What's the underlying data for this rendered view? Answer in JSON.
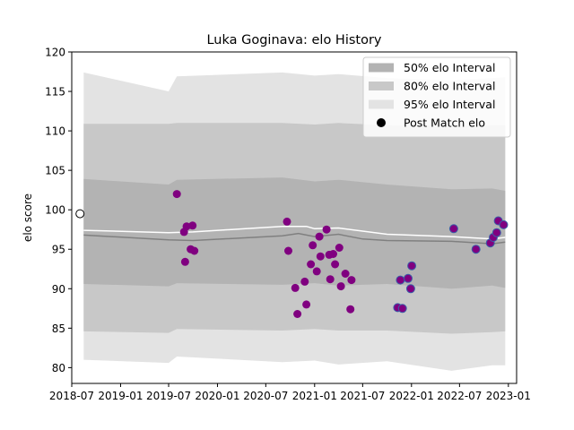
{
  "chart_data": {
    "type": "scatter",
    "title": "Luka Goginava: elo History",
    "xlabel": "",
    "ylabel": "elo score",
    "xlim": [
      "2018-07-01",
      "2023-02-01"
    ],
    "ylim": [
      78,
      120
    ],
    "grid": false,
    "legend_position": "top-right",
    "x_ticks": [
      {
        "date": "2018-07-01",
        "label": "2018-07"
      },
      {
        "date": "2019-01-01",
        "label": "2019-01"
      },
      {
        "date": "2019-07-01",
        "label": "2019-07"
      },
      {
        "date": "2020-01-01",
        "label": "2020-01"
      },
      {
        "date": "2020-07-01",
        "label": "2020-07"
      },
      {
        "date": "2021-01-01",
        "label": "2021-01"
      },
      {
        "date": "2021-07-01",
        "label": "2021-07"
      },
      {
        "date": "2022-01-01",
        "label": "2022-01"
      },
      {
        "date": "2022-07-01",
        "label": "2022-07"
      },
      {
        "date": "2023-01-01",
        "label": "2023-01"
      }
    ],
    "y_ticks": [
      80,
      85,
      90,
      95,
      100,
      105,
      110,
      115,
      120
    ],
    "legend": [
      {
        "label": "50% elo Interval",
        "color": "#b3b3b3"
      },
      {
        "label": "80% elo Interval",
        "color": "#c8c8c8"
      },
      {
        "label": "95% elo Interval",
        "color": "#e3e3e3"
      },
      {
        "label": "Post Match elo",
        "color": "#000000"
      }
    ],
    "bands": [
      {
        "name": "95% elo Interval",
        "color": "#e3e3e3",
        "points": [
          {
            "date": "2018-08-15",
            "lower": 81.0,
            "upper": 117.4
          },
          {
            "date": "2019-07-01",
            "lower": 80.6,
            "upper": 115.0
          },
          {
            "date": "2019-08-01",
            "lower": 81.4,
            "upper": 116.9
          },
          {
            "date": "2020-09-01",
            "lower": 80.7,
            "upper": 117.4
          },
          {
            "date": "2021-01-01",
            "lower": 80.9,
            "upper": 117.0
          },
          {
            "date": "2021-04-01",
            "lower": 80.4,
            "upper": 117.2
          },
          {
            "date": "2021-10-01",
            "lower": 80.8,
            "upper": 116.7
          },
          {
            "date": "2022-06-01",
            "lower": 79.6,
            "upper": 116.4
          },
          {
            "date": "2022-11-01",
            "lower": 80.3,
            "upper": 116.7
          },
          {
            "date": "2022-12-20",
            "lower": 80.3,
            "upper": 116.8
          }
        ]
      },
      {
        "name": "80% elo Interval",
        "color": "#c8c8c8",
        "points": [
          {
            "date": "2018-08-15",
            "lower": 84.6,
            "upper": 110.9
          },
          {
            "date": "2019-07-01",
            "lower": 84.4,
            "upper": 110.9
          },
          {
            "date": "2019-08-01",
            "lower": 84.9,
            "upper": 111.0
          },
          {
            "date": "2020-09-01",
            "lower": 84.7,
            "upper": 111.0
          },
          {
            "date": "2021-01-01",
            "lower": 84.9,
            "upper": 110.8
          },
          {
            "date": "2021-04-01",
            "lower": 84.7,
            "upper": 111.0
          },
          {
            "date": "2021-10-01",
            "lower": 84.7,
            "upper": 110.7
          },
          {
            "date": "2022-06-01",
            "lower": 84.3,
            "upper": 110.6
          },
          {
            "date": "2022-11-01",
            "lower": 84.5,
            "upper": 110.7
          },
          {
            "date": "2022-12-20",
            "lower": 84.6,
            "upper": 110.7
          }
        ]
      },
      {
        "name": "50% elo Interval",
        "color": "#b3b3b3",
        "points": [
          {
            "date": "2018-08-15",
            "lower": 90.6,
            "upper": 103.9
          },
          {
            "date": "2019-07-01",
            "lower": 90.3,
            "upper": 103.2
          },
          {
            "date": "2019-08-01",
            "lower": 90.7,
            "upper": 103.8
          },
          {
            "date": "2020-09-01",
            "lower": 90.5,
            "upper": 104.1
          },
          {
            "date": "2021-01-01",
            "lower": 90.7,
            "upper": 103.6
          },
          {
            "date": "2021-04-01",
            "lower": 90.4,
            "upper": 103.8
          },
          {
            "date": "2021-10-01",
            "lower": 90.6,
            "upper": 103.2
          },
          {
            "date": "2022-06-01",
            "lower": 90.0,
            "upper": 102.6
          },
          {
            "date": "2022-11-01",
            "lower": 90.4,
            "upper": 102.7
          },
          {
            "date": "2022-12-20",
            "lower": 90.1,
            "upper": 102.4
          }
        ]
      }
    ],
    "median_line": {
      "color": "#808080",
      "points": [
        {
          "date": "2018-08-15",
          "value": 96.8
        },
        {
          "date": "2019-07-01",
          "value": 96.2
        },
        {
          "date": "2019-10-01",
          "value": 96.1
        },
        {
          "date": "2020-09-01",
          "value": 96.7
        },
        {
          "date": "2020-11-01",
          "value": 97.0
        },
        {
          "date": "2021-01-01",
          "value": 96.6
        },
        {
          "date": "2021-04-01",
          "value": 96.9
        },
        {
          "date": "2021-07-01",
          "value": 96.3
        },
        {
          "date": "2021-10-01",
          "value": 96.1
        },
        {
          "date": "2022-06-01",
          "value": 96.0
        },
        {
          "date": "2022-11-01",
          "value": 95.7
        },
        {
          "date": "2022-12-20",
          "value": 95.9
        }
      ]
    },
    "expected_line": {
      "color": "#ffffff",
      "points": [
        {
          "date": "2018-08-15",
          "value": 97.4
        },
        {
          "date": "2019-07-01",
          "value": 97.1
        },
        {
          "date": "2019-10-01",
          "value": 97.2
        },
        {
          "date": "2020-09-01",
          "value": 97.9
        },
        {
          "date": "2020-12-01",
          "value": 97.9
        },
        {
          "date": "2021-01-01",
          "value": 97.6
        },
        {
          "date": "2021-04-01",
          "value": 97.7
        },
        {
          "date": "2021-10-01",
          "value": 96.9
        },
        {
          "date": "2022-06-01",
          "value": 96.6
        },
        {
          "date": "2022-11-01",
          "value": 96.3
        },
        {
          "date": "2022-12-20",
          "value": 96.5
        }
      ]
    },
    "initial_point": {
      "date": "2018-08-01",
      "value": 99.5
    },
    "series": [
      {
        "color": "#800080",
        "points": [
          {
            "date": "2019-08-01",
            "value": 102.0
          },
          {
            "date": "2019-08-28",
            "value": 97.2
          },
          {
            "date": "2019-09-01",
            "value": 93.4
          },
          {
            "date": "2019-09-07",
            "value": 97.9
          },
          {
            "date": "2019-09-22",
            "value": 95.0
          },
          {
            "date": "2019-09-29",
            "value": 98.0
          },
          {
            "date": "2019-10-06",
            "value": 94.8
          },
          {
            "date": "2020-09-19",
            "value": 98.5
          },
          {
            "date": "2020-09-24",
            "value": 94.8
          },
          {
            "date": "2020-10-20",
            "value": 90.1
          },
          {
            "date": "2020-10-28",
            "value": 86.8
          },
          {
            "date": "2020-11-25",
            "value": 90.9
          },
          {
            "date": "2020-12-01",
            "value": 88.0
          },
          {
            "date": "2020-12-18",
            "value": 93.1
          },
          {
            "date": "2020-12-25",
            "value": 95.5
          },
          {
            "date": "2021-01-09",
            "value": 92.2
          },
          {
            "date": "2021-01-19",
            "value": 96.6
          },
          {
            "date": "2021-01-23",
            "value": 94.1
          },
          {
            "date": "2021-02-15",
            "value": 97.5
          },
          {
            "date": "2021-02-25",
            "value": 94.3
          },
          {
            "date": "2021-03-01",
            "value": 91.2
          },
          {
            "date": "2021-03-12",
            "value": 94.4
          },
          {
            "date": "2021-03-19",
            "value": 93.1
          },
          {
            "date": "2021-04-04",
            "value": 95.2
          },
          {
            "date": "2021-04-10",
            "value": 90.3
          },
          {
            "date": "2021-04-27",
            "value": 91.9
          },
          {
            "date": "2021-05-16",
            "value": 87.4
          },
          {
            "date": "2021-05-20",
            "value": 91.1
          }
        ]
      },
      {
        "color": "#800080",
        "edge_color": "#3b5fa8",
        "points": [
          {
            "date": "2021-11-10",
            "value": 87.6
          },
          {
            "date": "2021-11-20",
            "value": 91.1
          },
          {
            "date": "2021-11-28",
            "value": 87.5
          },
          {
            "date": "2021-12-19",
            "value": 91.3
          },
          {
            "date": "2021-12-29",
            "value": 90.0
          },
          {
            "date": "2022-01-02",
            "value": 92.9
          },
          {
            "date": "2022-06-09",
            "value": 97.6
          },
          {
            "date": "2022-09-01",
            "value": 95.0
          },
          {
            "date": "2022-10-25",
            "value": 95.8
          },
          {
            "date": "2022-11-05",
            "value": 96.5
          },
          {
            "date": "2022-11-18",
            "value": 97.1
          },
          {
            "date": "2022-11-24",
            "value": 98.6
          },
          {
            "date": "2022-12-14",
            "value": 98.1
          }
        ]
      }
    ]
  }
}
